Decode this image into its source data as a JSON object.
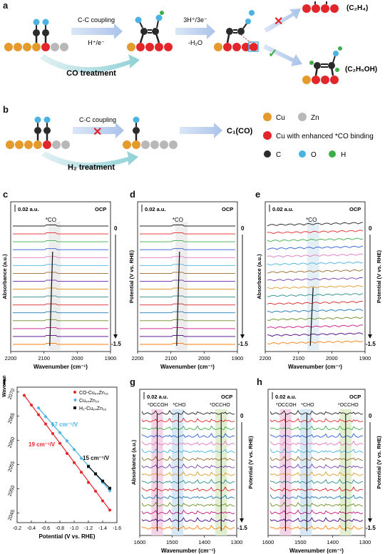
{
  "panel_a": {
    "label": "a",
    "step1_top": "C-C coupling",
    "step1_bottom": "H⁺/e⁻",
    "step2_top": "3H⁺/3e⁻",
    "step2_bottom": "-H₂O",
    "treatment": "CO treatment",
    "product1": "(C₂H₄)",
    "product2": "(C₂H₅OH)"
  },
  "panel_b": {
    "label": "b",
    "step_top": "C-C coupling",
    "treatment": "H₂ treatment",
    "product": "C₁(CO)"
  },
  "legend_atoms": {
    "cu": "Cu",
    "zn": "Zn",
    "cu_enhanced": "Cu with enhanced *CO binding",
    "c": "C",
    "o": "O",
    "h": "H",
    "colors": {
      "cu": "#e59a2c",
      "zn": "#b8b8b8",
      "cu_enhanced": "#e3262b",
      "c": "#2b2b2b",
      "o": "#4ab3e3",
      "h": "#3fae49"
    }
  },
  "ir_panels": [
    {
      "label": "c",
      "scale": "0.02 a.u.",
      "ocp": "OCP",
      "peak": "*CO",
      "top": "0",
      "bottom": "-1.5",
      "xticks": [
        "2200",
        "2100",
        "2000",
        "1900"
      ],
      "xlabel": "Wavenumber (cm⁻¹)",
      "ylabel_left": "Absorbance (a.u.)",
      "ylabel_right": ""
    },
    {
      "label": "d",
      "scale": "0.02 a.u.",
      "ocp": "OCP",
      "peak": "*CO",
      "top": "0",
      "bottom": "-1.5",
      "xticks": [
        "2200",
        "2100",
        "2000",
        "1900"
      ],
      "xlabel": "Wavenumber (cm⁻¹)",
      "ylabel_left": "Potential (V vs. RHE)",
      "ylabel_right": ""
    },
    {
      "label": "e",
      "scale": "0.02 a.u.",
      "ocp": "OCP",
      "peak": "*CO",
      "top": "0",
      "bottom": "-1.5",
      "xticks": [
        "2200",
        "2100",
        "2000",
        "1900"
      ],
      "xlabel": "Wavenumber (cm⁻¹)",
      "ylabel_left": "Absorbance (a.u.)",
      "ylabel_right": "Potential (V vs. RHE)"
    },
    {
      "label": "g",
      "scale": "0.02 a.u.",
      "ocp": "OCP",
      "peaks": [
        "*OCCOH",
        "*CHO",
        "*OCCHO"
      ],
      "top": "0",
      "bottom": "-1.5",
      "xticks": [
        "1600",
        "1500",
        "1400",
        "1300"
      ],
      "xlabel": "Wavenumber (cm⁻¹)",
      "ylabel_left": "Absorbance (a.u.)",
      "ylabel_right": "Potential (V vs. RHE)"
    },
    {
      "label": "h",
      "scale": "0.02 a.u.",
      "ocp": "OCP",
      "peaks": [
        "*OCCOH",
        "*CHO",
        "*OCCHO"
      ],
      "top": "0",
      "bottom": "-1.5",
      "xticks": [
        "1600",
        "1500",
        "1400",
        "1300"
      ],
      "xlabel": "Wavenumber (cm⁻¹)",
      "ylabel_left": "",
      "ylabel_right": "Potential (V vs. RHE)"
    }
  ],
  "trace_colors": [
    "#222222",
    "#e3262b",
    "#3fae49",
    "#2c5bd6",
    "#e377c2",
    "#4ab3e3",
    "#9a6b2f",
    "#7a3fb0",
    "#e59a2c",
    "#2c8c8c",
    "#d62728",
    "#1f77b4",
    "#6b8e23",
    "#c71585",
    "#4b0082",
    "#ff7f0e",
    "#e3262b"
  ],
  "chart_data": {
    "type": "scatter",
    "label": "f",
    "xlabel": "Potential (V vs. RHE)",
    "ylabel": "Wavenumber (cm⁻¹)",
    "xlim": [
      -0.2,
      -1.6
    ],
    "ylim": [
      2043,
      2071
    ],
    "xticks": [
      "-0.2",
      "-0.4",
      "-0.6",
      "-0.8",
      "-1.0",
      "-1.2",
      "-1.4",
      "-1.6"
    ],
    "yticks": [
      "2045",
      "2050",
      "2055",
      "2060",
      "2065",
      "2070"
    ],
    "series": [
      {
        "name": "CO-Cu₈₄Zn₁₆",
        "color": "#e3262b",
        "x": [
          -0.3,
          -0.4,
          -0.5,
          -0.6,
          -0.7,
          -0.8,
          -0.9,
          -1.0,
          -1.1,
          -1.2,
          -1.3,
          -1.4,
          -1.5
        ],
        "y": [
          2069.3,
          2067.3,
          2065.3,
          2063.4,
          2061.4,
          2059.4,
          2057.3,
          2055.4,
          2053.4,
          2051.3,
          2049.5,
          2047.5,
          2045.6
        ],
        "slope_label": "19 cm⁻¹/V"
      },
      {
        "name": "Cu₈₄Zn₁₆",
        "color": "#4ab3e3",
        "x": [
          -0.5,
          -0.6,
          -0.7,
          -0.8,
          -0.9,
          -1.0,
          -1.1,
          -1.2,
          -1.3,
          -1.4,
          -1.5
        ],
        "y": [
          2066.7,
          2064.9,
          2063.3,
          2061.6,
          2059.9,
          2058.1,
          2056.3,
          2054.7,
          2053.0,
          2051.3,
          2049.6
        ],
        "slope_label": "17 cm⁻¹/V"
      },
      {
        "name": "H₂-Cu₈₄Zn₁₆",
        "color": "#111111",
        "x": [
          -1.2,
          -1.3,
          -1.4,
          -1.5
        ],
        "y": [
          2054.6,
          2053.1,
          2051.6,
          2050.1
        ],
        "slope_label": "15 cm⁻¹/V"
      }
    ]
  }
}
